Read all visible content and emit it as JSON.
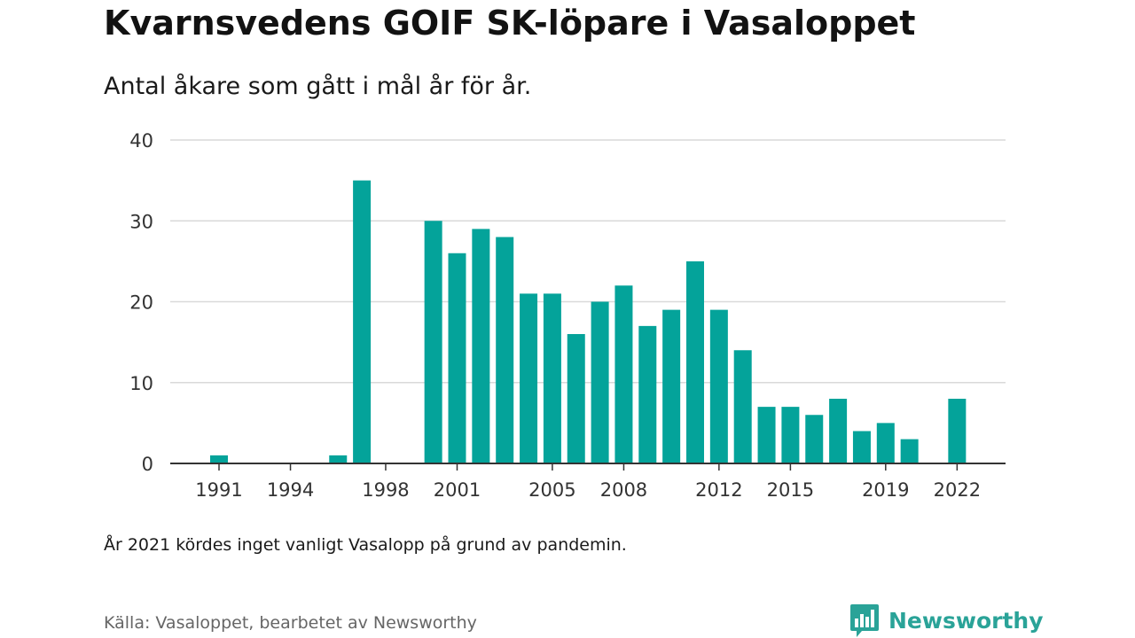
{
  "chart_data": {
    "type": "bar",
    "title": "Kvarnsvedens GOIF SK-löpare i Vasaloppet",
    "subtitle": "Antal åkare som gått i mål år för år.",
    "xlabel": "",
    "ylabel": "",
    "ylim": [
      0,
      40
    ],
    "yticks": [
      0,
      10,
      20,
      30,
      40
    ],
    "xticks": [
      1991,
      1994,
      1998,
      2001,
      2005,
      2008,
      2012,
      2015,
      2019,
      2022
    ],
    "grid": true,
    "bar_color": "#04a39a",
    "x": [
      1991,
      1992,
      1993,
      1994,
      1995,
      1996,
      1997,
      1998,
      1999,
      2000,
      2001,
      2002,
      2003,
      2004,
      2005,
      2006,
      2007,
      2008,
      2009,
      2010,
      2011,
      2012,
      2013,
      2014,
      2015,
      2016,
      2017,
      2018,
      2019,
      2020,
      2021,
      2022
    ],
    "values": [
      1,
      0,
      0,
      0,
      0,
      1,
      35,
      0,
      0,
      30,
      26,
      29,
      28,
      21,
      21,
      16,
      20,
      22,
      17,
      19,
      25,
      19,
      14,
      7,
      7,
      6,
      8,
      4,
      5,
      3,
      0,
      8
    ],
    "note": "År 2021 kördes inget vanligt Vasalopp på grund av pandemin.",
    "source": "Källa: Vasaloppet, bearbetet av Newsworthy"
  },
  "brand": {
    "name": "Newsworthy",
    "logo_icon": "newsworthy-chart-bubble-icon",
    "color": "#2aa398"
  }
}
